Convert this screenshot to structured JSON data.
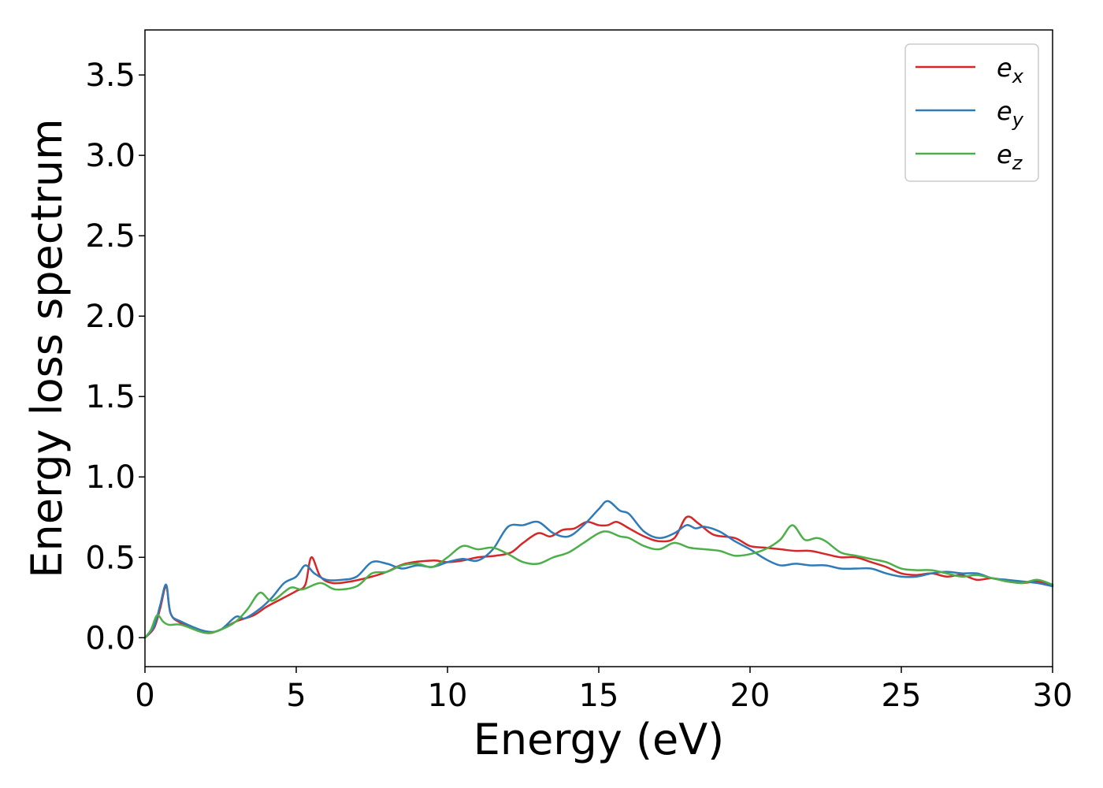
{
  "chart_data": {
    "type": "line",
    "xlabel": "Energy (eV)",
    "ylabel": "Energy loss spectrum",
    "xlim": [
      0,
      30
    ],
    "ylim": [
      -0.18,
      3.78
    ],
    "xticks": [
      0,
      5,
      10,
      15,
      20,
      25,
      30
    ],
    "xtick_labels": [
      "0",
      "5",
      "10",
      "15",
      "20",
      "25",
      "30"
    ],
    "yticks": [
      0.0,
      0.5,
      1.0,
      1.5,
      2.0,
      2.5,
      3.0,
      3.5
    ],
    "ytick_labels": [
      "0.0",
      "0.5",
      "1.0",
      "1.5",
      "2.0",
      "2.5",
      "3.0",
      "3.5"
    ],
    "grid": false,
    "legend_position": "top-right",
    "series": [
      {
        "name": "e",
        "name_sub": "x",
        "color": "#d62728",
        "points": [
          [
            0.0,
            0.0
          ],
          [
            0.3,
            0.06
          ],
          [
            0.5,
            0.18
          ],
          [
            0.7,
            0.32
          ],
          [
            0.85,
            0.15
          ],
          [
            1.2,
            0.09
          ],
          [
            2.0,
            0.03
          ],
          [
            2.5,
            0.05
          ],
          [
            3.0,
            0.1
          ],
          [
            3.6,
            0.14
          ],
          [
            4.0,
            0.19
          ],
          [
            4.5,
            0.24
          ],
          [
            5.0,
            0.29
          ],
          [
            5.3,
            0.33
          ],
          [
            5.5,
            0.5
          ],
          [
            5.8,
            0.38
          ],
          [
            6.2,
            0.34
          ],
          [
            6.8,
            0.35
          ],
          [
            7.5,
            0.38
          ],
          [
            8.0,
            0.41
          ],
          [
            8.6,
            0.46
          ],
          [
            9.5,
            0.48
          ],
          [
            10.0,
            0.47
          ],
          [
            10.5,
            0.48
          ],
          [
            11.0,
            0.5
          ],
          [
            11.6,
            0.51
          ],
          [
            12.1,
            0.53
          ],
          [
            12.5,
            0.59
          ],
          [
            13.0,
            0.65
          ],
          [
            13.4,
            0.63
          ],
          [
            13.8,
            0.67
          ],
          [
            14.2,
            0.68
          ],
          [
            14.6,
            0.72
          ],
          [
            15.0,
            0.7
          ],
          [
            15.3,
            0.7
          ],
          [
            15.6,
            0.72
          ],
          [
            16.0,
            0.68
          ],
          [
            16.5,
            0.63
          ],
          [
            17.0,
            0.6
          ],
          [
            17.5,
            0.62
          ],
          [
            17.9,
            0.75
          ],
          [
            18.3,
            0.71
          ],
          [
            18.8,
            0.64
          ],
          [
            19.5,
            0.62
          ],
          [
            20.0,
            0.57
          ],
          [
            20.5,
            0.56
          ],
          [
            21.0,
            0.55
          ],
          [
            21.5,
            0.54
          ],
          [
            22.0,
            0.54
          ],
          [
            22.5,
            0.52
          ],
          [
            23.0,
            0.5
          ],
          [
            23.5,
            0.5
          ],
          [
            24.0,
            0.47
          ],
          [
            24.5,
            0.44
          ],
          [
            25.0,
            0.4
          ],
          [
            25.5,
            0.39
          ],
          [
            26.0,
            0.4
          ],
          [
            26.5,
            0.38
          ],
          [
            27.0,
            0.39
          ],
          [
            27.5,
            0.36
          ],
          [
            28.0,
            0.37
          ],
          [
            28.5,
            0.35
          ],
          [
            29.0,
            0.34
          ],
          [
            29.5,
            0.35
          ],
          [
            30.0,
            0.33
          ]
        ]
      },
      {
        "name": "e",
        "name_sub": "y",
        "color": "#2f7bb8",
        "points": [
          [
            0.0,
            0.0
          ],
          [
            0.3,
            0.07
          ],
          [
            0.5,
            0.2
          ],
          [
            0.7,
            0.33
          ],
          [
            0.85,
            0.15
          ],
          [
            1.2,
            0.1
          ],
          [
            2.0,
            0.04
          ],
          [
            2.5,
            0.05
          ],
          [
            3.0,
            0.13
          ],
          [
            3.3,
            0.12
          ],
          [
            3.8,
            0.18
          ],
          [
            4.2,
            0.25
          ],
          [
            4.6,
            0.34
          ],
          [
            5.0,
            0.38
          ],
          [
            5.3,
            0.45
          ],
          [
            5.6,
            0.4
          ],
          [
            6.0,
            0.36
          ],
          [
            6.5,
            0.36
          ],
          [
            7.0,
            0.38
          ],
          [
            7.5,
            0.47
          ],
          [
            8.0,
            0.46
          ],
          [
            8.5,
            0.43
          ],
          [
            9.0,
            0.45
          ],
          [
            9.5,
            0.44
          ],
          [
            10.0,
            0.47
          ],
          [
            10.5,
            0.49
          ],
          [
            11.0,
            0.48
          ],
          [
            11.5,
            0.55
          ],
          [
            12.0,
            0.69
          ],
          [
            12.5,
            0.7
          ],
          [
            13.0,
            0.72
          ],
          [
            13.5,
            0.65
          ],
          [
            14.0,
            0.63
          ],
          [
            14.5,
            0.7
          ],
          [
            15.0,
            0.8
          ],
          [
            15.3,
            0.85
          ],
          [
            15.7,
            0.79
          ],
          [
            16.0,
            0.77
          ],
          [
            16.5,
            0.66
          ],
          [
            17.0,
            0.62
          ],
          [
            17.5,
            0.65
          ],
          [
            17.9,
            0.7
          ],
          [
            18.2,
            0.68
          ],
          [
            18.5,
            0.69
          ],
          [
            19.0,
            0.66
          ],
          [
            19.5,
            0.6
          ],
          [
            20.0,
            0.55
          ],
          [
            20.5,
            0.49
          ],
          [
            21.0,
            0.45
          ],
          [
            21.5,
            0.46
          ],
          [
            22.0,
            0.45
          ],
          [
            22.5,
            0.45
          ],
          [
            23.0,
            0.43
          ],
          [
            23.5,
            0.43
          ],
          [
            24.0,
            0.43
          ],
          [
            24.5,
            0.4
          ],
          [
            25.0,
            0.38
          ],
          [
            25.5,
            0.38
          ],
          [
            26.0,
            0.4
          ],
          [
            26.5,
            0.41
          ],
          [
            27.0,
            0.4
          ],
          [
            27.5,
            0.4
          ],
          [
            28.0,
            0.37
          ],
          [
            28.5,
            0.36
          ],
          [
            29.0,
            0.35
          ],
          [
            29.5,
            0.34
          ],
          [
            30.0,
            0.32
          ]
        ]
      },
      {
        "name": "e",
        "name_sub": "z",
        "color": "#4daf4a",
        "points": [
          [
            0.0,
            0.0
          ],
          [
            0.2,
            0.05
          ],
          [
            0.4,
            0.14
          ],
          [
            0.6,
            0.1
          ],
          [
            0.8,
            0.08
          ],
          [
            1.2,
            0.08
          ],
          [
            2.0,
            0.03
          ],
          [
            2.5,
            0.05
          ],
          [
            3.0,
            0.1
          ],
          [
            3.4,
            0.18
          ],
          [
            3.8,
            0.28
          ],
          [
            4.2,
            0.23
          ],
          [
            4.8,
            0.31
          ],
          [
            5.2,
            0.3
          ],
          [
            5.8,
            0.34
          ],
          [
            6.3,
            0.3
          ],
          [
            7.0,
            0.32
          ],
          [
            7.5,
            0.4
          ],
          [
            8.0,
            0.41
          ],
          [
            8.5,
            0.45
          ],
          [
            9.0,
            0.46
          ],
          [
            9.5,
            0.44
          ],
          [
            10.0,
            0.5
          ],
          [
            10.5,
            0.57
          ],
          [
            11.0,
            0.55
          ],
          [
            11.5,
            0.56
          ],
          [
            12.0,
            0.52
          ],
          [
            12.5,
            0.47
          ],
          [
            13.0,
            0.46
          ],
          [
            13.5,
            0.5
          ],
          [
            14.0,
            0.53
          ],
          [
            14.5,
            0.59
          ],
          [
            15.0,
            0.65
          ],
          [
            15.3,
            0.66
          ],
          [
            15.7,
            0.63
          ],
          [
            16.0,
            0.62
          ],
          [
            16.5,
            0.57
          ],
          [
            17.0,
            0.55
          ],
          [
            17.5,
            0.59
          ],
          [
            18.0,
            0.56
          ],
          [
            18.5,
            0.55
          ],
          [
            19.0,
            0.54
          ],
          [
            19.5,
            0.51
          ],
          [
            20.0,
            0.52
          ],
          [
            20.5,
            0.55
          ],
          [
            21.0,
            0.61
          ],
          [
            21.4,
            0.7
          ],
          [
            21.8,
            0.61
          ],
          [
            22.2,
            0.62
          ],
          [
            22.5,
            0.6
          ],
          [
            23.0,
            0.53
          ],
          [
            23.5,
            0.51
          ],
          [
            24.0,
            0.49
          ],
          [
            24.5,
            0.47
          ],
          [
            25.0,
            0.43
          ],
          [
            25.5,
            0.42
          ],
          [
            26.0,
            0.42
          ],
          [
            26.5,
            0.4
          ],
          [
            27.0,
            0.38
          ],
          [
            27.5,
            0.39
          ],
          [
            28.0,
            0.37
          ],
          [
            28.5,
            0.35
          ],
          [
            29.0,
            0.34
          ],
          [
            29.5,
            0.36
          ],
          [
            30.0,
            0.33
          ]
        ]
      }
    ]
  }
}
